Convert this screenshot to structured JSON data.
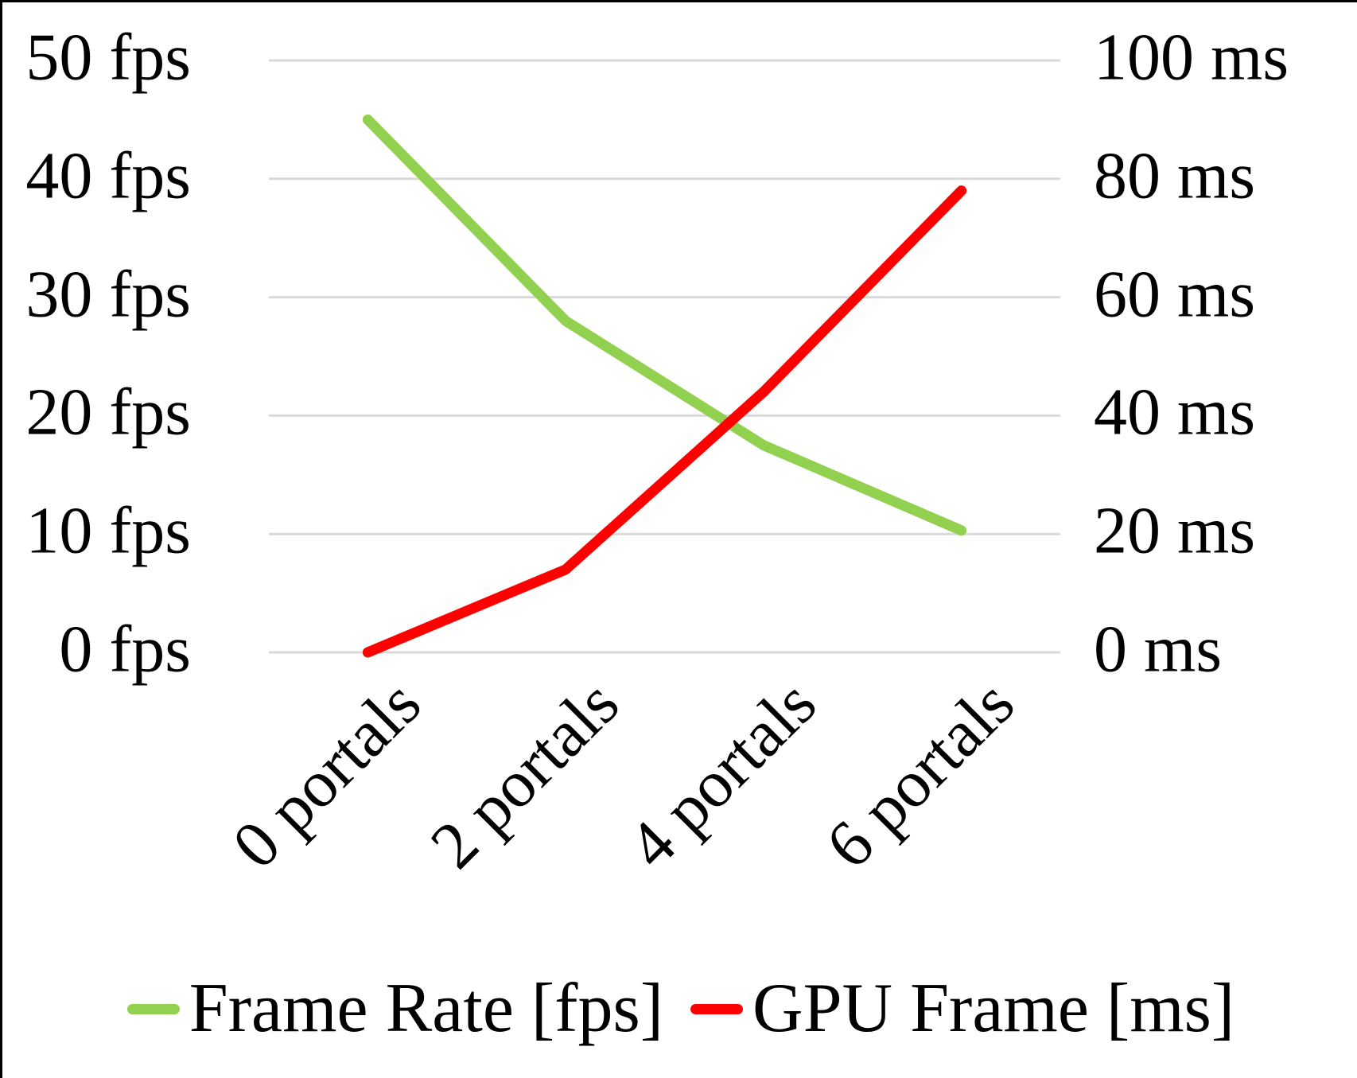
{
  "chart_data": {
    "type": "line",
    "categories": [
      "0 portals",
      "2 portals",
      "4 portals",
      "6 portals"
    ],
    "series": [
      {
        "name": "Frame Rate [fps]",
        "axis": "left",
        "color": "#92d050",
        "values": [
          45,
          28,
          17.5,
          10.3
        ]
      },
      {
        "name": "GPU Frame [ms]",
        "axis": "right",
        "color": "#ff0000",
        "values": [
          0,
          14,
          44,
          78
        ]
      }
    ],
    "left_axis": {
      "ticks": [
        "0 fps",
        "10 fps",
        "20 fps",
        "30 fps",
        "40 fps",
        "50 fps"
      ],
      "min": 0,
      "max": 50
    },
    "right_axis": {
      "ticks": [
        "0 ms",
        "20 ms",
        "40 ms",
        "60 ms",
        "80 ms",
        "100 ms"
      ],
      "min": 0,
      "max": 100
    },
    "grid": true,
    "gridline_color": "#d9d9d9",
    "legend_position": "bottom"
  }
}
